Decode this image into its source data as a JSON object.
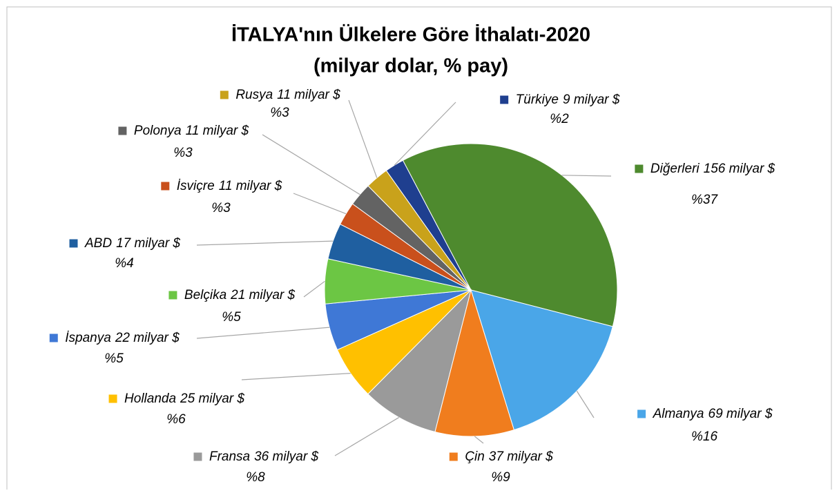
{
  "chart_data": {
    "type": "pie",
    "title": "İTALYA'nın Ülkelere Göre İthalatı-2020",
    "subtitle": "(milyar dolar, % pay)",
    "categories": [
      "Diğerleri",
      "Almanya",
      "Çin",
      "Fransa",
      "Hollanda",
      "İspanya",
      "Belçika",
      "ABD",
      "İsviçre",
      "Polonya",
      "Rusya",
      "Türkiye"
    ],
    "values": [
      156,
      69,
      37,
      36,
      25,
      22,
      21,
      17,
      11,
      11,
      11,
      9
    ],
    "value_labels": [
      "156 milyar $",
      "69 milyar $",
      "37 milyar $",
      "36 milyar $",
      "25 milyar $",
      "22 milyar $",
      "21 milyar $",
      "17 milyar $",
      "11 milyar $",
      "11 milyar $",
      "11 milyar $",
      "9 milyar $"
    ],
    "shares": [
      37,
      16,
      9,
      8,
      6,
      5,
      5,
      4,
      3,
      3,
      3,
      2
    ],
    "share_labels": [
      "%37",
      "%16",
      "%9",
      "%8",
      "%6",
      "%5",
      "%5",
      "%4",
      "%3",
      "%3",
      "%3",
      "%2"
    ],
    "colors": [
      "#4e8a2e",
      "#4aa6e8",
      "#f07d1e",
      "#9a9a9a",
      "#ffc000",
      "#3f78d6",
      "#6cc644",
      "#1f5fa0",
      "#c9501c",
      "#636363",
      "#c9a21b",
      "#1f3f8f"
    ]
  }
}
